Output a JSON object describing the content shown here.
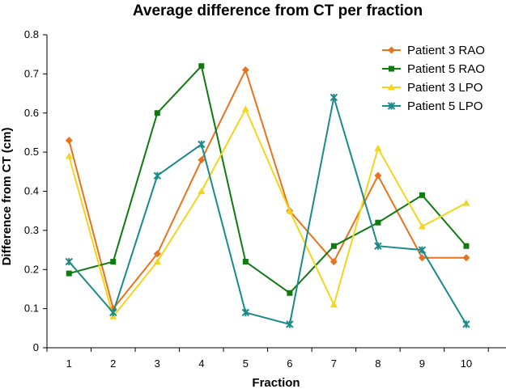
{
  "chart_data": {
    "type": "line",
    "title": "Average difference from CT per fraction",
    "xlabel": "Fraction",
    "ylabel": "Difference from CT (cm)",
    "x": [
      1,
      2,
      3,
      4,
      5,
      6,
      7,
      8,
      9,
      10
    ],
    "ylim": [
      0,
      0.8
    ],
    "yticks": [
      "0",
      "0.1",
      "0.2",
      "0.3",
      "0.4",
      "0.5",
      "0.6",
      "0.7",
      "0.8"
    ],
    "grid": false,
    "legend_position": "top-right",
    "series": [
      {
        "name": "Patient 3 RAO",
        "color": "#e8731e",
        "marker": "diamond",
        "values": [
          0.53,
          0.1,
          0.24,
          0.48,
          0.71,
          0.35,
          0.22,
          0.44,
          0.23,
          0.23
        ]
      },
      {
        "name": "Patient 5 RAO",
        "color": "#0f7a0f",
        "marker": "square",
        "values": [
          0.19,
          0.22,
          0.6,
          0.72,
          0.22,
          0.14,
          0.26,
          0.32,
          0.39,
          0.26
        ]
      },
      {
        "name": "Patient 3 LPO",
        "color": "#f2d51c",
        "marker": "triangle",
        "values": [
          0.49,
          0.08,
          0.22,
          0.4,
          0.61,
          0.35,
          0.11,
          0.51,
          0.31,
          0.37
        ]
      },
      {
        "name": "Patient 5 LPO",
        "color": "#1b8a8a",
        "marker": "star",
        "values": [
          0.22,
          0.09,
          0.44,
          0.52,
          0.09,
          0.06,
          0.64,
          0.26,
          0.25,
          0.06
        ]
      }
    ]
  }
}
